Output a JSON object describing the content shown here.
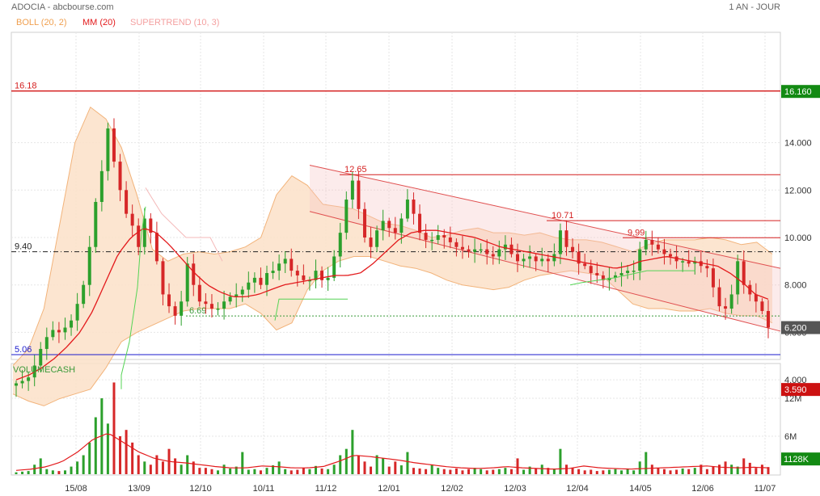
{
  "header": {
    "title": "ADOCIA - abcbourse.com",
    "period": "1 AN - JOUR"
  },
  "legend": {
    "boll": "BOLL (20, 2)",
    "mm": "MM (20)",
    "supertrend": "SUPERTREND (10, 3)"
  },
  "volume_title": "VOLUMECASH",
  "colors": {
    "candle_up": "#2ca02c",
    "candle_down": "#d62728",
    "boll_fill": "#fbe0c8",
    "boll_line": "#f2b37a",
    "mm": "#e31a1c",
    "supertrend_up": "#55d455",
    "supertrend_down": "#f4b8b8",
    "channel": "#e05050",
    "hline_red": "#d41f1f",
    "support_blue": "#1a1acc",
    "badge_last": "#555555",
    "badge_high": "#138a13",
    "badge_low": "#cc1111"
  },
  "chart_data": [
    {
      "type": "candlestick",
      "title": "ADOCIA",
      "x_dates": [
        "15/08",
        "13/09",
        "12/10",
        "10/11",
        "11/12",
        "12/01",
        "12/02",
        "12/03",
        "12/04",
        "14/05",
        "12/06",
        "11/07"
      ],
      "y_ticks": [
        "4.000",
        "6.000",
        "8.000",
        "10.000",
        "12.000",
        "14.000"
      ],
      "ylim": [
        3.0,
        16.6
      ],
      "levels": [
        {
          "label": "16.18",
          "value": 16.18,
          "style": "red"
        },
        {
          "label": "9.40",
          "value": 9.4,
          "style": "dashdot"
        },
        {
          "label": "5.06",
          "value": 5.06,
          "style": "blue"
        },
        {
          "label": "6.69",
          "value": 6.69,
          "style": "dotted-green"
        }
      ],
      "resistances": [
        {
          "label": "12.65",
          "value": 12.65
        },
        {
          "label": "10.71",
          "value": 10.71
        },
        {
          "label": "9.99",
          "value": 9.99
        }
      ],
      "channel": {
        "start_date_index": 4,
        "upper": [
          13.05,
          8.7
        ],
        "lower": [
          11.1,
          6.05
        ]
      },
      "close_series": [
        3.85,
        3.95,
        4.1,
        4.6,
        5.3,
        5.8,
        6.1,
        6.0,
        6.2,
        6.5,
        7.2,
        8.0,
        9.6,
        11.5,
        12.8,
        14.6,
        13.2,
        12.0,
        11.0,
        10.5,
        9.6,
        10.8,
        10.2,
        9.0,
        7.6,
        7.1,
        6.7,
        7.3,
        8.9,
        8.0,
        7.3,
        7.2,
        7.0,
        7.0,
        7.3,
        7.5,
        7.6,
        7.8,
        8.1,
        8.3,
        8.0,
        8.5,
        8.6,
        8.9,
        9.1,
        8.6,
        8.4,
        8.2,
        8.2,
        8.6,
        8.2,
        8.3,
        9.2,
        10.2,
        11.6,
        12.4,
        11.2,
        10.0,
        9.6,
        10.3,
        10.7,
        10.4,
        10.2,
        10.8,
        11.6,
        11.0,
        10.2,
        9.9,
        9.9,
        10.1,
        10.0,
        9.8,
        9.6,
        9.5,
        9.4,
        9.5,
        9.5,
        9.3,
        9.2,
        9.5,
        9.7,
        9.3,
        9.0,
        9.1,
        9.2,
        9.0,
        9.1,
        9.0,
        9.3,
        10.3,
        9.6,
        9.4,
        8.9,
        8.8,
        8.5,
        8.4,
        8.2,
        8.3,
        8.4,
        8.5,
        8.6,
        8.6,
        9.5,
        9.9,
        9.7,
        9.5,
        9.3,
        9.2,
        9.0,
        9.0,
        8.9,
        9.0,
        8.8,
        8.7,
        7.9,
        7.1,
        7.0,
        7.6,
        9.0,
        8.0,
        7.6,
        7.3,
        6.9,
        6.2
      ],
      "mm_series": [
        4.0,
        4.2,
        4.5,
        4.9,
        5.4,
        6.0,
        6.9,
        8.1,
        9.3,
        10.0,
        10.4,
        10.2,
        9.7,
        9.1,
        8.5,
        8.0,
        7.7,
        7.5,
        7.5,
        7.6,
        7.8,
        8.0,
        8.1,
        8.2,
        8.3,
        8.4,
        8.4,
        8.5,
        8.9,
        9.4,
        9.9,
        10.2,
        10.3,
        10.3,
        10.2,
        10.1,
        10.0,
        9.8,
        9.6,
        9.5,
        9.4,
        9.3,
        9.2,
        9.1,
        9.0,
        8.9,
        8.8,
        8.7,
        8.8,
        9.0,
        9.1,
        9.2,
        9.1,
        9.0,
        8.9,
        8.8,
        8.5,
        8.1,
        7.6,
        7.4
      ],
      "boll_upper_series": [
        4.6,
        5.3,
        7.0,
        10.5,
        14.0,
        15.5,
        15.0,
        13.8,
        11.8,
        9.5,
        9.0,
        9.3,
        9.4,
        9.3,
        9.4,
        9.6,
        10.0,
        11.8,
        12.6,
        12.2,
        11.4,
        11.3,
        11.2,
        10.9,
        10.6,
        10.5,
        10.3,
        10.0,
        10.1,
        10.3,
        10.4,
        10.2,
        10.2,
        10.1,
        10.2,
        10.0,
        9.9,
        9.9,
        9.8,
        9.6,
        9.4,
        9.7,
        9.9,
        9.9,
        9.9,
        10.0,
        9.9,
        9.7,
        9.8,
        9.3
      ],
      "boll_lower_series": [
        3.4,
        3.1,
        2.9,
        3.2,
        3.4,
        3.6,
        4.5,
        5.6,
        6.0,
        6.3,
        6.6,
        6.9,
        7.0,
        7.0,
        7.0,
        7.2,
        6.8,
        6.1,
        6.4,
        7.8,
        8.6,
        9.0,
        9.2,
        9.2,
        9.0,
        8.8,
        8.7,
        8.5,
        8.2,
        8.0,
        7.9,
        7.8,
        7.9,
        8.2,
        8.4,
        8.5,
        8.6,
        8.5,
        8.4,
        7.8,
        7.2,
        7.0,
        7.0,
        6.9,
        6.9,
        7.0,
        6.8,
        6.7,
        6.7,
        6.4
      ],
      "last_price": {
        "label": "6.200",
        "value": 6.2
      },
      "high_price": {
        "label": "16.160",
        "value": 16.16
      },
      "low_price": {
        "label": "3.590",
        "value": 3.59
      }
    },
    {
      "type": "bar",
      "title": "VOLUMECASH",
      "y_ticks": [
        "6M",
        "12M"
      ],
      "ylim": [
        0,
        15
      ],
      "values_millions": [
        0.3,
        0.4,
        0.5,
        1.5,
        2.5,
        0.8,
        0.6,
        0.5,
        0.6,
        1.2,
        2.0,
        3.0,
        5.0,
        9.0,
        12.0,
        8.0,
        14.5,
        6.0,
        7.0,
        5.0,
        3.0,
        2.0,
        1.5,
        3.0,
        2.0,
        4.0,
        2.5,
        1.5,
        3.0,
        2.0,
        1.0,
        1.0,
        0.8,
        0.6,
        1.5,
        0.9,
        1.2,
        3.5,
        0.7,
        0.8,
        0.6,
        1.0,
        1.4,
        2.0,
        0.8,
        0.6,
        0.7,
        1.0,
        0.8,
        1.3,
        0.9,
        0.8,
        1.5,
        3.0,
        4.0,
        7.0,
        3.0,
        2.0,
        1.2,
        3.0,
        2.5,
        1.2,
        2.0,
        1.4,
        3.5,
        1.0,
        0.9,
        0.8,
        1.5,
        1.0,
        0.8,
        0.7,
        0.9,
        0.6,
        0.8,
        1.0,
        0.8,
        0.6,
        0.7,
        0.8,
        1.0,
        0.8,
        2.5,
        0.7,
        1.2,
        0.9,
        1.5,
        1.0,
        0.8,
        4.0,
        1.5,
        1.0,
        0.8,
        0.6,
        0.7,
        0.5,
        0.6,
        0.7,
        0.8,
        0.6,
        0.9,
        0.6,
        2.0,
        3.5,
        1.5,
        1.0,
        0.8,
        0.6,
        0.7,
        0.9,
        0.8,
        1.0,
        1.5,
        0.8,
        1.2,
        1.5,
        2.0,
        1.5,
        1.2,
        2.5,
        1.8,
        1.0,
        1.5,
        1.128
      ],
      "mm_values_millions": [
        0.6,
        0.8,
        1.2,
        2.0,
        3.5,
        5.5,
        6.5,
        5.0,
        3.5,
        2.5,
        2.0,
        1.8,
        1.5,
        1.2,
        1.0,
        1.0,
        1.3,
        1.2,
        1.0,
        1.0,
        1.2,
        2.0,
        3.0,
        2.8,
        2.5,
        2.2,
        1.8,
        1.5,
        1.2,
        1.0,
        0.9,
        1.0,
        1.2,
        1.0,
        0.9,
        0.8,
        0.9,
        1.3,
        1.0,
        0.9,
        0.8,
        0.9,
        1.0,
        1.1,
        1.2,
        1.3,
        1.1,
        1.0,
        1.1,
        1.0
      ],
      "last_value": {
        "label": "1128K",
        "value": 1.128
      }
    }
  ]
}
